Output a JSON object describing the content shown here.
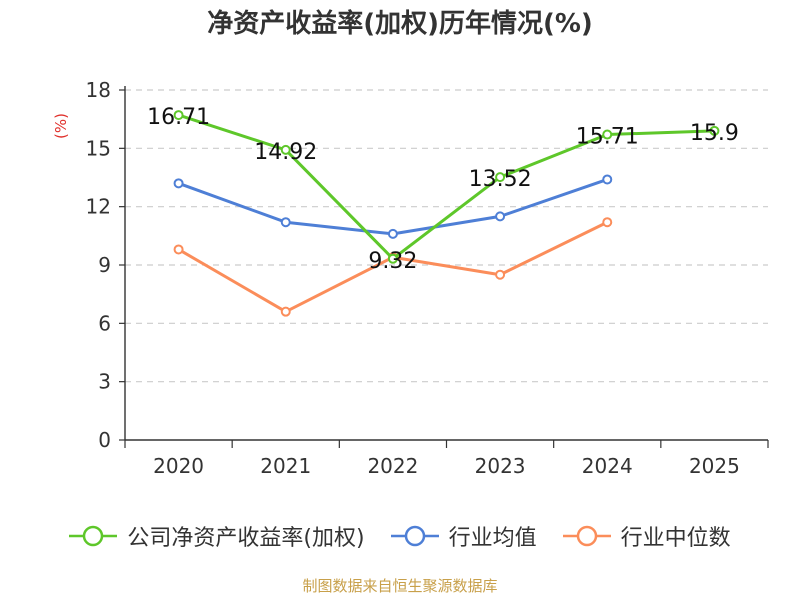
{
  "chart_data": {
    "type": "line",
    "title": "净资产收益率(加权)历年情况(%)",
    "ylabel": "(%)",
    "xlabel": "",
    "categories": [
      "2020",
      "2021",
      "2022",
      "2023",
      "2024",
      "2025"
    ],
    "ylim": [
      0,
      18
    ],
    "yticks": [
      "0",
      "3",
      "6",
      "9",
      "12",
      "15",
      "18"
    ],
    "grid": true,
    "legend_position": "bottom",
    "series": [
      {
        "name": "公司净资产收益率(加权)",
        "values": [
          16.71,
          14.92,
          9.32,
          13.52,
          15.71,
          15.9
        ],
        "data_labels": [
          "16.71",
          "14.92",
          "9.32",
          "13.52",
          "15.71",
          "15.9"
        ],
        "color": "#5ec72a"
      },
      {
        "name": "行业均值",
        "values": [
          13.2,
          11.2,
          10.6,
          11.5,
          13.4,
          null
        ],
        "data_labels": [],
        "color": "#4e7fd6"
      },
      {
        "name": "行业中位数",
        "values": [
          9.8,
          6.6,
          9.4,
          8.5,
          11.2,
          null
        ],
        "data_labels": [],
        "color": "#fb8d5a"
      }
    ]
  },
  "footer": {
    "source": "制图数据来自恒生聚源数据库"
  },
  "colors": {
    "axis": "#333333",
    "grid": "#cccccc",
    "ylabel": "#e0302b",
    "source": "#c8a04a"
  }
}
